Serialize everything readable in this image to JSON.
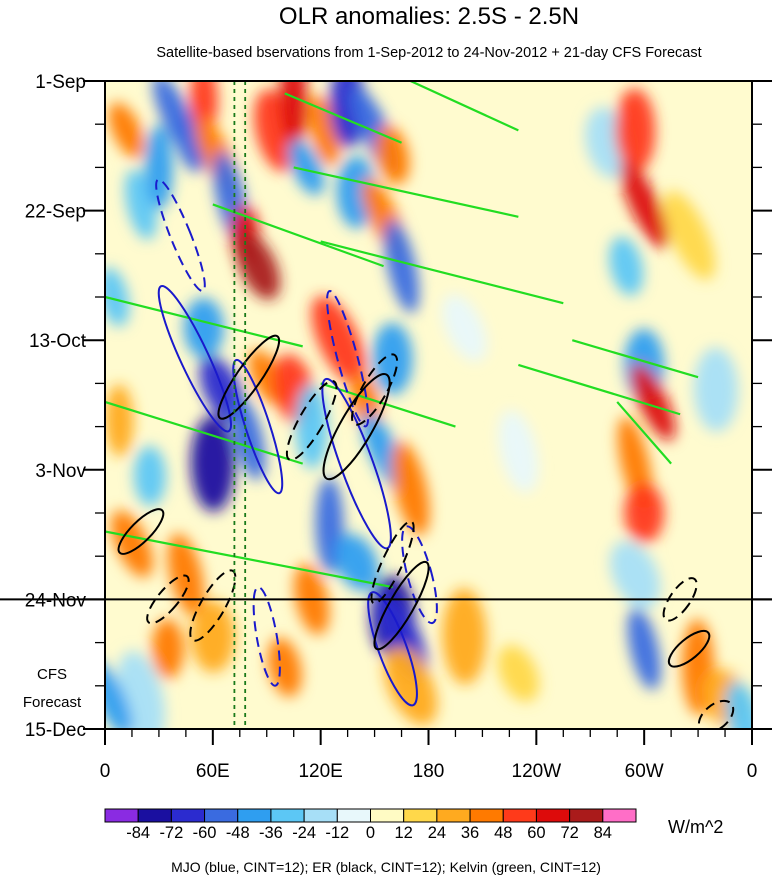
{
  "chart_data": {
    "type": "heatmap",
    "title": "OLR anomalies: 2.5S - 2.5N",
    "subtitle": "Satellite-based bservations from 1-Sep-2012 to 24-Nov-2012 + 21-day CFS Forecast",
    "xlabel": "",
    "ylabel": "",
    "x_ticks": [
      "0",
      "60E",
      "120E",
      "180",
      "120W",
      "60W",
      "0"
    ],
    "x_tick_values": [
      0,
      60,
      120,
      180,
      240,
      300,
      360
    ],
    "xlim": [
      0,
      360
    ],
    "y_ticks": [
      "1-Sep",
      "22-Sep",
      "13-Oct",
      "3-Nov",
      "24-Nov",
      "15-Dec"
    ],
    "y_tick_values": [
      0,
      21,
      42,
      63,
      84,
      105
    ],
    "ylim": [
      0,
      105
    ],
    "forecast_start_day": 84,
    "forecast_label_lines": [
      "CFS",
      "Forecast"
    ],
    "colorbar": {
      "levels": [
        "-84",
        "-72",
        "-60",
        "-48",
        "-36",
        "-24",
        "-12",
        "0",
        "12",
        "24",
        "36",
        "48",
        "60",
        "72",
        "84"
      ],
      "colors": [
        "#8a2be2",
        "#1a0fa0",
        "#2b2bcf",
        "#3a6be0",
        "#2f9ef0",
        "#5cc7f5",
        "#a7dff7",
        "#e8f8fb",
        "#fffbc4",
        "#ffd84a",
        "#ffaa1f",
        "#ff7a00",
        "#ff3a1a",
        "#dd0b0b",
        "#aa1b1b",
        "#ff6ec7"
      ],
      "unit": "W/m^2"
    },
    "footer": "MJO (blue, CINT=12); ER (black, CINT=12); Kelvin (green, CINT=12)",
    "contour_series": [
      {
        "name": "MJO",
        "color": "#1a1acc"
      },
      {
        "name": "ER",
        "color": "#000000"
      },
      {
        "name": "Kelvin",
        "color": "#22dd22"
      }
    ],
    "heat_blobs": [
      {
        "lon": 12,
        "day": 8,
        "v": 40
      },
      {
        "lon": 20,
        "day": 20,
        "v": -30
      },
      {
        "lon": 30,
        "day": 14,
        "v": -40
      },
      {
        "lon": 40,
        "day": 6,
        "v": -50
      },
      {
        "lon": 48,
        "day": 10,
        "v": -60
      },
      {
        "lon": 55,
        "day": 3,
        "v": 50
      },
      {
        "lon": 62,
        "day": 12,
        "v": 40
      },
      {
        "lon": 70,
        "day": 19,
        "v": -50
      },
      {
        "lon": 78,
        "day": 25,
        "v": 60
      },
      {
        "lon": 85,
        "day": 30,
        "v": 72
      },
      {
        "lon": 95,
        "day": 8,
        "v": 48
      },
      {
        "lon": 105,
        "day": 3,
        "v": 60
      },
      {
        "lon": 112,
        "day": 14,
        "v": -40
      },
      {
        "lon": 122,
        "day": 8,
        "v": 40
      },
      {
        "lon": 135,
        "day": 4,
        "v": -72
      },
      {
        "lon": 150,
        "day": 8,
        "v": -60
      },
      {
        "lon": 160,
        "day": 12,
        "v": 36
      },
      {
        "lon": 140,
        "day": 18,
        "v": -48
      },
      {
        "lon": 155,
        "day": 22,
        "v": 40
      },
      {
        "lon": 165,
        "day": 30,
        "v": -60
      },
      {
        "lon": 55,
        "day": 40,
        "v": -48
      },
      {
        "lon": 65,
        "day": 50,
        "v": -72
      },
      {
        "lon": 80,
        "day": 58,
        "v": -60
      },
      {
        "lon": 60,
        "day": 62,
        "v": -84
      },
      {
        "lon": 90,
        "day": 48,
        "v": 40
      },
      {
        "lon": 105,
        "day": 50,
        "v": 48
      },
      {
        "lon": 115,
        "day": 56,
        "v": -36
      },
      {
        "lon": 130,
        "day": 42,
        "v": 48
      },
      {
        "lon": 145,
        "day": 52,
        "v": 40
      },
      {
        "lon": 160,
        "day": 45,
        "v": -48
      },
      {
        "lon": 155,
        "day": 60,
        "v": -40
      },
      {
        "lon": 170,
        "day": 66,
        "v": 36
      },
      {
        "lon": 25,
        "day": 64,
        "v": -36
      },
      {
        "lon": 15,
        "day": 75,
        "v": 36
      },
      {
        "lon": 45,
        "day": 80,
        "v": 36
      },
      {
        "lon": 125,
        "day": 72,
        "v": -60
      },
      {
        "lon": 140,
        "day": 78,
        "v": -48
      },
      {
        "lon": 115,
        "day": 84,
        "v": 36
      },
      {
        "lon": 160,
        "day": 87,
        "v": -84
      },
      {
        "lon": 165,
        "day": 90,
        "v": -72
      },
      {
        "lon": 100,
        "day": 95,
        "v": 36
      },
      {
        "lon": 60,
        "day": 90,
        "v": 24
      },
      {
        "lon": 170,
        "day": 98,
        "v": 24
      },
      {
        "lon": 20,
        "day": 100,
        "v": -24
      },
      {
        "lon": 35,
        "day": 92,
        "v": 36
      },
      {
        "lon": 200,
        "day": 40,
        "v": -12
      },
      {
        "lon": 230,
        "day": 60,
        "v": -12
      },
      {
        "lon": 200,
        "day": 90,
        "v": 24
      },
      {
        "lon": 230,
        "day": 96,
        "v": 12
      },
      {
        "lon": 280,
        "day": 10,
        "v": -24
      },
      {
        "lon": 295,
        "day": 8,
        "v": 48
      },
      {
        "lon": 300,
        "day": 20,
        "v": 60
      },
      {
        "lon": 290,
        "day": 30,
        "v": -36
      },
      {
        "lon": 300,
        "day": 46,
        "v": -48
      },
      {
        "lon": 305,
        "day": 52,
        "v": 60
      },
      {
        "lon": 295,
        "day": 62,
        "v": 40
      },
      {
        "lon": 300,
        "day": 70,
        "v": 48
      },
      {
        "lon": 295,
        "day": 80,
        "v": -24
      },
      {
        "lon": 300,
        "day": 92,
        "v": -60
      },
      {
        "lon": 330,
        "day": 95,
        "v": 36
      },
      {
        "lon": 345,
        "day": 100,
        "v": 24
      },
      {
        "lon": 355,
        "day": 103,
        "v": -36
      },
      {
        "lon": 340,
        "day": 50,
        "v": -24
      },
      {
        "lon": 325,
        "day": 25,
        "v": 12
      },
      {
        "lon": 5,
        "day": 35,
        "v": -30
      },
      {
        "lon": 8,
        "day": 55,
        "v": 30
      },
      {
        "lon": 3,
        "day": 100,
        "v": -40
      }
    ]
  }
}
